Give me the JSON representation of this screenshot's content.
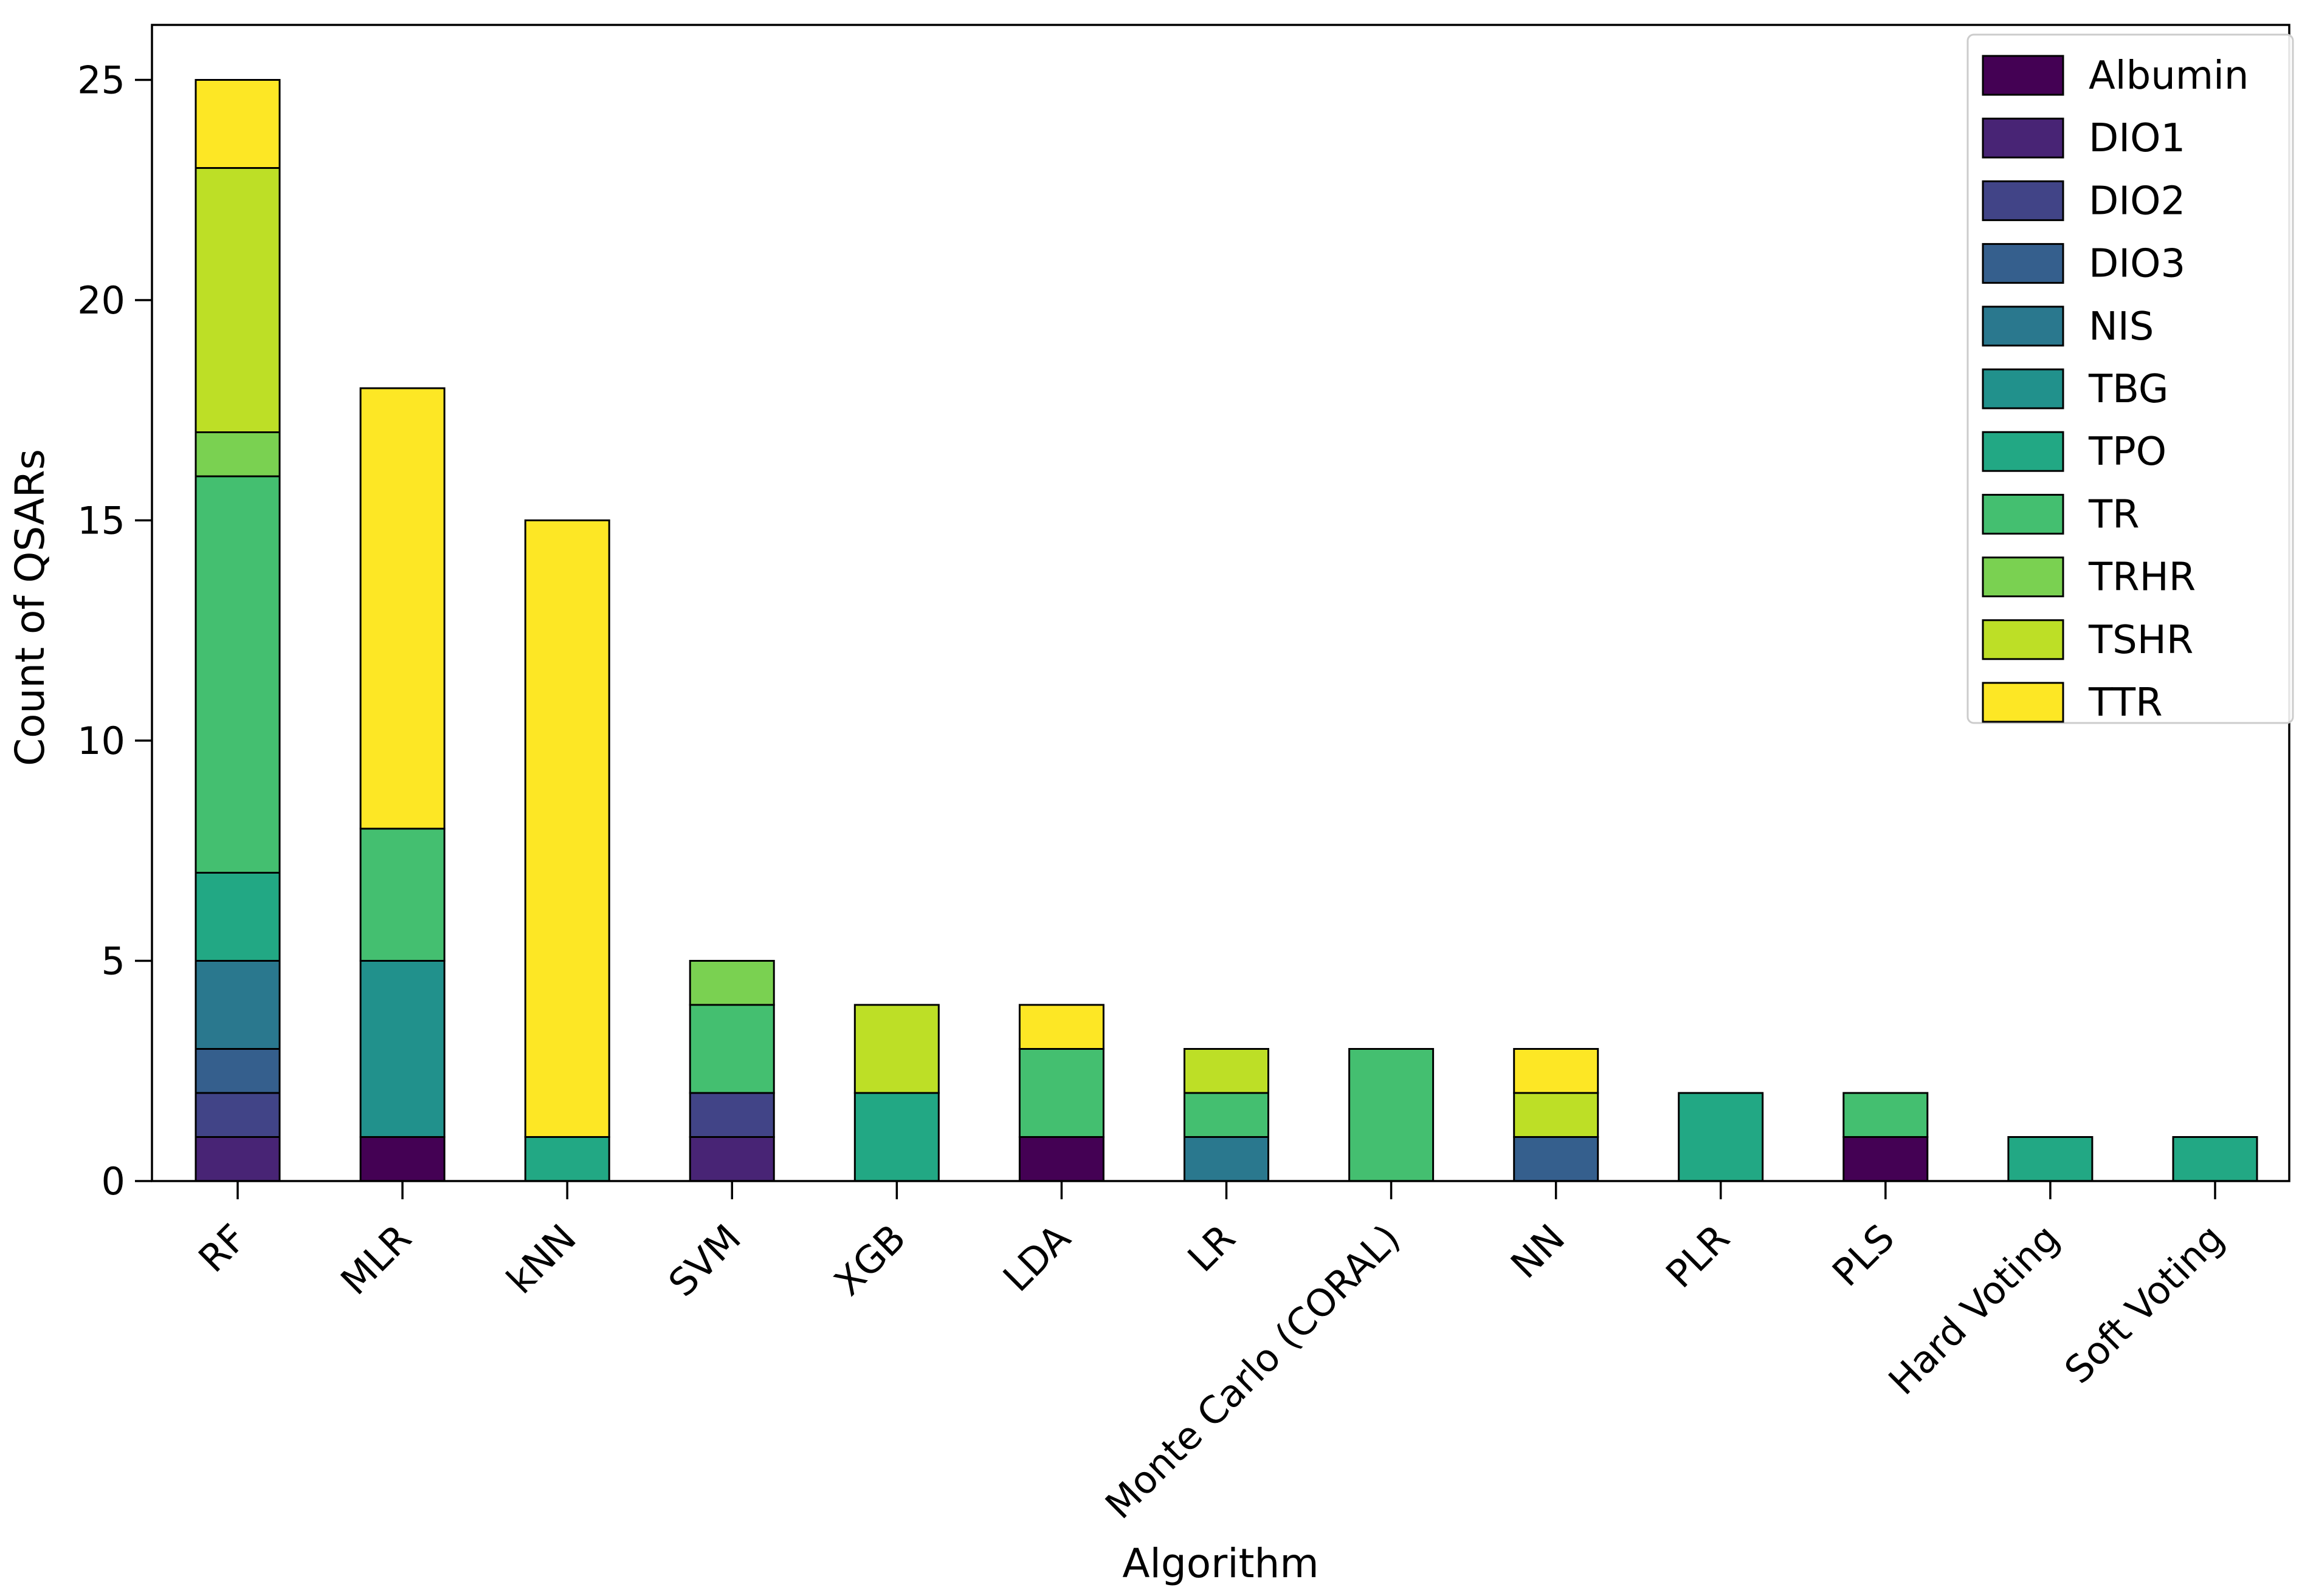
{
  "figure": {
    "background": "#ffffff",
    "frame_color": "#000000"
  },
  "chart_data": {
    "type": "bar",
    "stacked": true,
    "title": "",
    "xlabel": "Algorithm",
    "ylabel": "Count of QSARs",
    "ylim": [
      0,
      26.25
    ],
    "yticks": [
      0,
      5,
      10,
      15,
      20,
      25
    ],
    "grid": false,
    "legend_position": "upper right",
    "categories": [
      "RF",
      "MLR",
      "kNN",
      "SVM",
      "XGB",
      "LDA",
      "LR",
      "Monte Carlo (CORAL)",
      "NN",
      "PLR",
      "PLS",
      "Hard Voting",
      "Soft Voting"
    ],
    "series": [
      {
        "name": "Albumin",
        "color": "#440154",
        "values": [
          0,
          1,
          0,
          0,
          0,
          1,
          0,
          0,
          0,
          0,
          1,
          0,
          0
        ]
      },
      {
        "name": "DIO1",
        "color": "#482475",
        "values": [
          1,
          0,
          0,
          1,
          0,
          0,
          0,
          0,
          0,
          0,
          0,
          0,
          0
        ]
      },
      {
        "name": "DIO2",
        "color": "#414487",
        "values": [
          1,
          0,
          0,
          1,
          0,
          0,
          0,
          0,
          0,
          0,
          0,
          0,
          0
        ]
      },
      {
        "name": "DIO3",
        "color": "#355f8d",
        "values": [
          1,
          0,
          0,
          0,
          0,
          0,
          0,
          0,
          1,
          0,
          0,
          0,
          0
        ]
      },
      {
        "name": "NIS",
        "color": "#2a788e",
        "values": [
          2,
          0,
          0,
          0,
          0,
          0,
          1,
          0,
          0,
          0,
          0,
          0,
          0
        ]
      },
      {
        "name": "TBG",
        "color": "#21918c",
        "values": [
          0,
          4,
          0,
          0,
          0,
          0,
          0,
          0,
          0,
          0,
          0,
          0,
          0
        ]
      },
      {
        "name": "TPO",
        "color": "#22a884",
        "values": [
          2,
          0,
          1,
          0,
          2,
          0,
          0,
          0,
          0,
          2,
          0,
          1,
          1
        ]
      },
      {
        "name": "TR",
        "color": "#44bf70",
        "values": [
          9,
          3,
          0,
          2,
          0,
          2,
          1,
          3,
          0,
          0,
          1,
          0,
          0
        ]
      },
      {
        "name": "TRHR",
        "color": "#7ad151",
        "values": [
          1,
          0,
          0,
          1,
          0,
          0,
          0,
          0,
          0,
          0,
          0,
          0,
          0
        ]
      },
      {
        "name": "TSHR",
        "color": "#bddf26",
        "values": [
          6,
          0,
          0,
          0,
          2,
          0,
          1,
          0,
          1,
          0,
          0,
          0,
          0
        ]
      },
      {
        "name": "TTR",
        "color": "#fde725",
        "values": [
          2,
          10,
          14,
          0,
          0,
          1,
          0,
          0,
          1,
          0,
          0,
          0,
          0
        ]
      }
    ],
    "bar_totals": [
      25,
      18,
      15,
      5,
      4,
      4,
      3,
      3,
      3,
      2,
      2,
      1,
      1
    ]
  }
}
